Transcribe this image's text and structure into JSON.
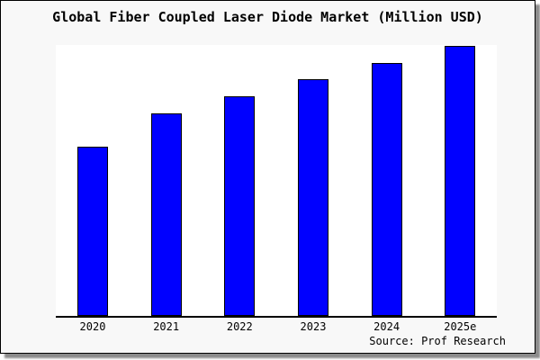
{
  "chart_data": {
    "type": "bar",
    "title": "Global Fiber Coupled Laser Diode Market (Million USD)",
    "categories": [
      "2020",
      "2021",
      "2022",
      "2023",
      "2024",
      "2025e"
    ],
    "values": [
      188,
      225,
      244,
      263,
      281,
      300
    ],
    "value_units": "relative bar heights in pixels (no y-axis or value labels are shown in the chart)",
    "ylim": [
      0,
      301
    ],
    "xlabel": "",
    "ylabel": "",
    "gridlines": false,
    "y_axis_visible": false,
    "legend": "none",
    "bar_color": "#0000ff",
    "bar_border_color": "#000000",
    "plot_background": "#ffffff",
    "panel_background": "#f8f8f8",
    "source": "Source: Prof Research"
  }
}
